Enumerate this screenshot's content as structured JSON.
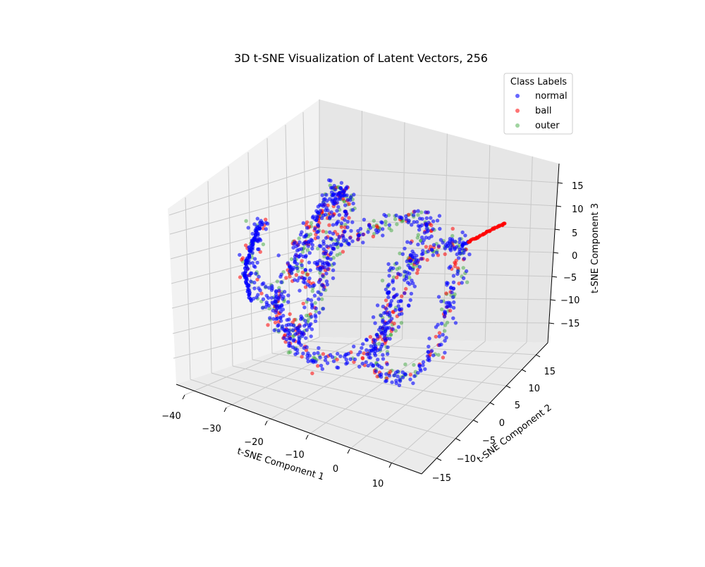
{
  "chart_data": {
    "type": "scatter",
    "projection": "3d",
    "title": "3D t-SNE Visualization of Latent Vectors, 256",
    "xlabel": "t-SNE Component 1",
    "ylabel": "t-SNE Component 2",
    "zlabel": "t-SNE Component 3",
    "xlim": [
      -40,
      20
    ],
    "ylim": [
      -20,
      20
    ],
    "zlim": [
      -20,
      20
    ],
    "x_ticks": [
      "−40",
      "−30",
      "−20",
      "−10",
      "0",
      "10"
    ],
    "y_ticks": [
      "−15",
      "−10",
      "−5",
      "0",
      "5",
      "10",
      "15"
    ],
    "z_ticks": [
      "−15",
      "−10",
      "−5",
      "0",
      "5",
      "10",
      "15"
    ],
    "grid": true,
    "legend": {
      "title": "Class Labels",
      "placement": "top-right",
      "entries": [
        {
          "name": "normal",
          "color": "#0000ff"
        },
        {
          "name": "ball",
          "color": "#ff0000"
        },
        {
          "name": "outer",
          "color": "#2ca02c"
        }
      ]
    },
    "series": [
      {
        "name": "normal",
        "color": "#0000ff",
        "alpha": 0.6
      },
      {
        "name": "ball",
        "color": "#ff0000",
        "alpha": 0.55
      },
      {
        "name": "outer",
        "color": "#2ca02c",
        "alpha": 0.45
      }
    ],
    "point_clouds_approx": [
      {
        "name": "left-tail",
        "description_points": [
          [
            -33,
            -10,
            5
          ],
          [
            -34,
            -10,
            0
          ],
          [
            -33,
            -11,
            -6
          ],
          [
            -30,
            -11,
            -10
          ]
        ]
      },
      {
        "name": "main-manifold",
        "extent": {
          "x": [
            -30,
            10
          ],
          "y": [
            -15,
            15
          ],
          "z": [
            -15,
            12
          ]
        }
      },
      {
        "name": "ball-tail",
        "points": [
          [
            10,
            14,
            3
          ],
          [
            12,
            15,
            4
          ],
          [
            14,
            16,
            5
          ]
        ]
      }
    ]
  }
}
